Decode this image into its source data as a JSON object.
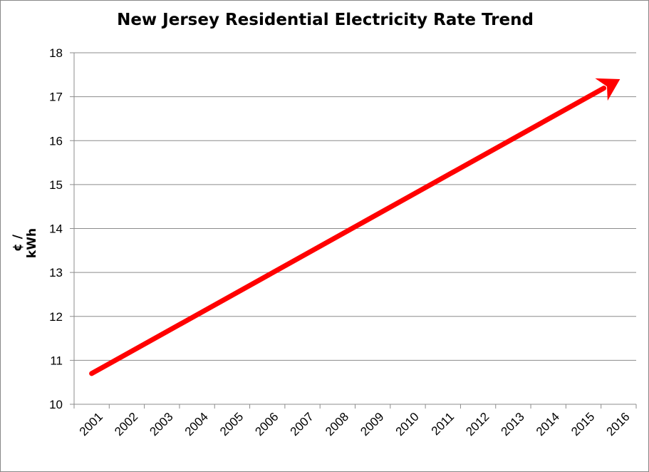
{
  "chart_data": {
    "type": "line",
    "title": "New Jersey Residential Electricity Rate Trend",
    "xlabel": "",
    "ylabel": "¢ / kWh",
    "categories": [
      "2001",
      "2002",
      "2003",
      "2004",
      "2005",
      "2006",
      "2007",
      "2008",
      "2009",
      "2010",
      "2011",
      "2012",
      "2013",
      "2014",
      "2015",
      "2016"
    ],
    "ylim": [
      10,
      18
    ],
    "yticks": [
      10,
      11,
      12,
      13,
      14,
      15,
      16,
      17,
      18
    ],
    "grid": true,
    "legend": "none",
    "series": [
      {
        "x": [
          "2001",
          "2016"
        ],
        "values": [
          10.7,
          17.4
        ],
        "style": "arrow",
        "color": "#ff0000"
      }
    ]
  }
}
